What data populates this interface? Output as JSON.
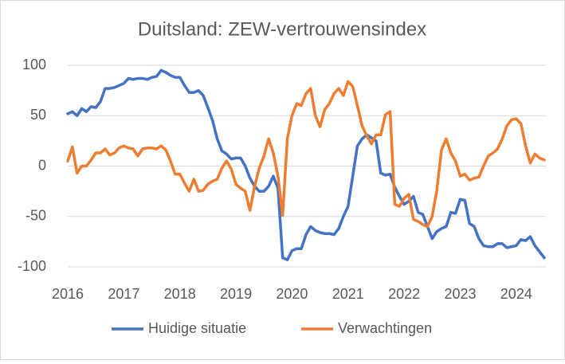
{
  "chart_data": {
    "type": "line",
    "title": "Duitsland: ZEW-vertrouwensindex",
    "categories": [
      "2016",
      null,
      null,
      null,
      null,
      null,
      null,
      null,
      null,
      null,
      null,
      null,
      "2017",
      null,
      null,
      null,
      null,
      null,
      null,
      null,
      null,
      null,
      null,
      null,
      "2018",
      null,
      null,
      null,
      null,
      null,
      null,
      null,
      null,
      null,
      null,
      null,
      "2019",
      null,
      null,
      null,
      null,
      null,
      null,
      null,
      null,
      null,
      null,
      null,
      "2020",
      null,
      null,
      null,
      null,
      null,
      null,
      null,
      null,
      null,
      null,
      null,
      "2021",
      null,
      null,
      null,
      null,
      null,
      null,
      null,
      null,
      null,
      null,
      null,
      "2022",
      null,
      null,
      null,
      null,
      null,
      null,
      null,
      null,
      null,
      null,
      null,
      "2023",
      null,
      null,
      null,
      null,
      null,
      null,
      null,
      null,
      null,
      null,
      null,
      "2024",
      null,
      null,
      null,
      null,
      null,
      null
    ],
    "series": [
      {
        "name": "Huidige situatie",
        "color": "#4472c4",
        "values": [
          52,
          54,
          50,
          57,
          54,
          59,
          58,
          64,
          77,
          77,
          78,
          80,
          82,
          87,
          86,
          87,
          87,
          86,
          88,
          89,
          95,
          93,
          90,
          88,
          88,
          80,
          73,
          73,
          75,
          70,
          58,
          45,
          27,
          15,
          12,
          7,
          8,
          8,
          0,
          -12,
          -20,
          -25,
          -25,
          -20,
          -10,
          -22,
          -91,
          -93,
          -84,
          -82,
          -82,
          -68,
          -60,
          -64,
          -66,
          -67,
          -67,
          -68,
          -62,
          -50,
          -40,
          -10,
          20,
          27,
          31,
          28,
          25,
          -7,
          -9,
          -8,
          -21,
          -30,
          -38,
          -35,
          -30,
          -46,
          -48,
          -60,
          -72,
          -65,
          -62,
          -60,
          -46,
          -47,
          -33,
          -34,
          -57,
          -60,
          -72,
          -79,
          -80,
          -80,
          -77,
          -77,
          -81,
          -80,
          -79,
          -73,
          -74,
          -70,
          -79,
          -85,
          -91
        ]
      },
      {
        "name": "Verwachtingen",
        "color": "#ed7d31",
        "values": [
          5,
          19,
          -7,
          0,
          0,
          6,
          13,
          13,
          17,
          11,
          13,
          18,
          20,
          18,
          17,
          10,
          17,
          18,
          18,
          17,
          20,
          16,
          5,
          -8,
          -8,
          -17,
          -25,
          -13,
          -25,
          -24,
          -18,
          -15,
          -13,
          -2,
          5,
          -3,
          -18,
          -22,
          -25,
          -44,
          -20,
          -2,
          10,
          27,
          13,
          -10,
          -49,
          27,
          50,
          62,
          60,
          72,
          77,
          50,
          39,
          56,
          62,
          72,
          77,
          70,
          84,
          79,
          60,
          40,
          30,
          22,
          31,
          31,
          51,
          54,
          -38,
          -40,
          -32,
          -28,
          -53,
          -55,
          -58,
          -60,
          -50,
          -24,
          16,
          27,
          13,
          5,
          -10,
          -8,
          -14,
          -12,
          -11,
          0,
          10,
          13,
          17,
          27,
          40,
          46,
          47,
          42,
          20,
          3,
          12,
          8,
          6
        ]
      }
    ],
    "ylim": [
      -100,
      100
    ],
    "yticks": [
      -100,
      -50,
      0,
      50,
      100
    ],
    "grid": true,
    "legend": "bottom"
  }
}
